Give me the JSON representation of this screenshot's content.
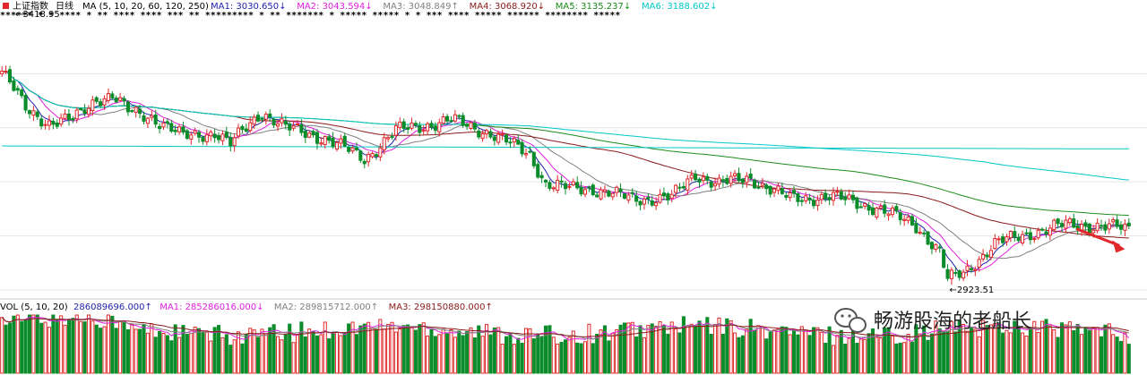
{
  "chart_data": [
    {
      "type": "candlestick",
      "title": "上证指数",
      "period": "日线",
      "ma_header": "MA (5, 10, 20, 60, 120, 250)",
      "indicators": [
        {
          "name": "MA1",
          "value": "3030.650",
          "arrow": "↓",
          "color": "#1f1fb0"
        },
        {
          "name": "MA2",
          "value": "3043.594",
          "arrow": "↓",
          "color": "#e020e0"
        },
        {
          "name": "MA3",
          "value": "3048.849",
          "arrow": "↑",
          "color": "#808080"
        },
        {
          "name": "MA4",
          "value": "3068.920",
          "arrow": "↓",
          "color": "#8b1a1a"
        },
        {
          "name": "MA5",
          "value": "3135.237",
          "arrow": "↓",
          "color": "#1a8c1a"
        },
        {
          "name": "MA6",
          "value": "3188.602",
          "arrow": "↓",
          "color": "#00c8c8"
        }
      ],
      "annotations": [
        {
          "text": "3418.95",
          "kind": "high"
        },
        {
          "text": "2923.51",
          "kind": "low"
        }
      ],
      "y_range": [
        2905,
        3440
      ],
      "colors": {
        "up": "#e0282a",
        "down": "#0a8c2a"
      }
    },
    {
      "type": "bar",
      "title": "VOL (5, 10, 20)",
      "indicators": [
        {
          "name": "",
          "value": "286089696.000",
          "arrow": "↑",
          "color": "#1f1fb0"
        },
        {
          "name": "MA1",
          "value": "285286016.000",
          "arrow": "↓",
          "color": "#e020e0"
        },
        {
          "name": "MA2",
          "value": "289815712.000",
          "arrow": "↑",
          "color": "#808080"
        },
        {
          "name": "MA3",
          "value": "298150880.000",
          "arrow": "↑",
          "color": "#8b1a1a"
        }
      ]
    }
  ],
  "watermark": {
    "text": "畅游股海的老船长",
    "icon": "wechat-icon"
  }
}
